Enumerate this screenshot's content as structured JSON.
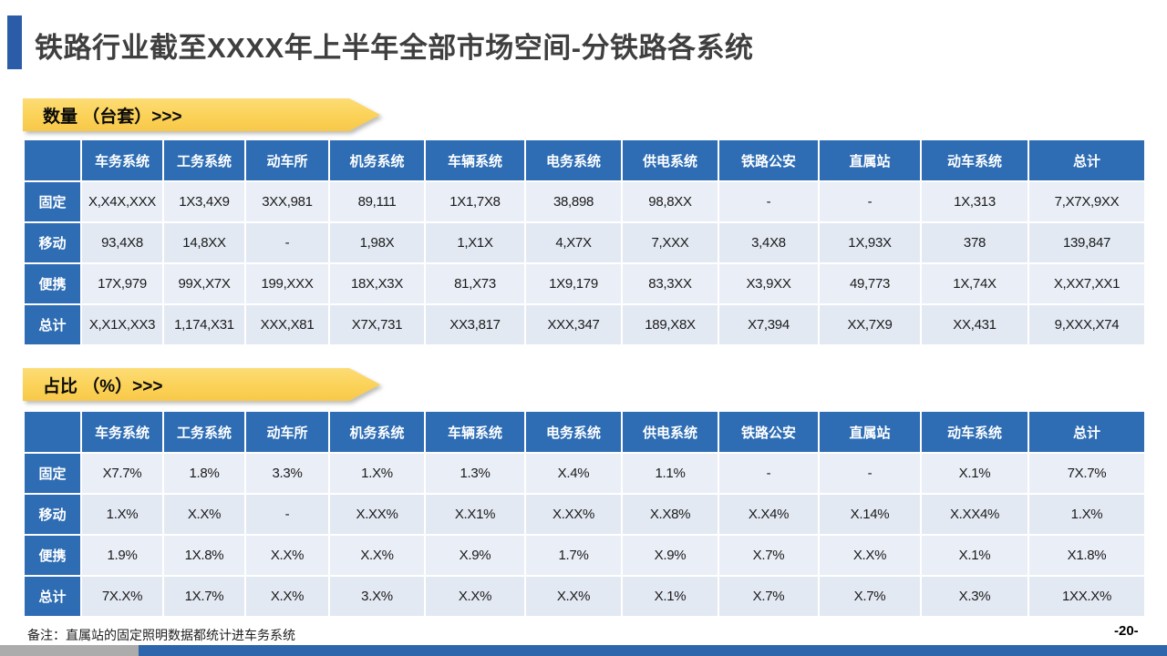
{
  "slide": {
    "title": "铁路行业截至XXXX年上半年全部市场空间-分铁路各系统",
    "note": "备注：直属站的固定照明数据都统计进车务系统",
    "page_number": "-20-"
  },
  "columns": [
    "",
    "车务系统",
    "工务系统",
    "动车所",
    "机务系统",
    "车辆系统",
    "电务系统",
    "供电系统",
    "铁路公安",
    "直属站",
    "动车系统",
    "总计"
  ],
  "sections": [
    {
      "banner": "数量 （台套）>>>",
      "rows": [
        {
          "label": "固定",
          "values": [
            "X,X4X,XXX",
            "1X3,4X9",
            "3XX,981",
            "89,111",
            "1X1,7X8",
            "38,898",
            "98,8XX",
            "-",
            "-",
            "1X,313",
            "7,X7X,9XX"
          ]
        },
        {
          "label": "移动",
          "values": [
            "93,4X8",
            "14,8XX",
            "-",
            "1,98X",
            "1,X1X",
            "4,X7X",
            "7,XXX",
            "3,4X8",
            "1X,93X",
            "378",
            "139,847"
          ]
        },
        {
          "label": "便携",
          "values": [
            "17X,979",
            "99X,X7X",
            "199,XXX",
            "18X,X3X",
            "81,X73",
            "1X9,179",
            "83,3XX",
            "X3,9XX",
            "49,773",
            "1X,74X",
            "X,XX7,XX1"
          ]
        },
        {
          "label": "总计",
          "values": [
            "X,X1X,XX3",
            "1,174,X31",
            "XXX,X81",
            "X7X,731",
            "XX3,817",
            "XXX,347",
            "189,X8X",
            "X7,394",
            "XX,7X9",
            "XX,431",
            "9,XXX,X74"
          ]
        }
      ]
    },
    {
      "banner": "占比 （%）>>>",
      "rows": [
        {
          "label": "固定",
          "values": [
            "X7.7%",
            "1.8%",
            "3.3%",
            "1.X%",
            "1.3%",
            "X.4%",
            "1.1%",
            "-",
            "-",
            "X.1%",
            "7X.7%"
          ]
        },
        {
          "label": "移动",
          "values": [
            "1.X%",
            "X.X%",
            "-",
            "X.XX%",
            "X.X1%",
            "X.XX%",
            "X.X8%",
            "X.X4%",
            "X.14%",
            "X.XX4%",
            "1.X%"
          ]
        },
        {
          "label": "便携",
          "values": [
            "1.9%",
            "1X.8%",
            "X.X%",
            "X.X%",
            "X.9%",
            "1.7%",
            "X.9%",
            "X.7%",
            "X.X%",
            "X.1%",
            "X1.8%"
          ]
        },
        {
          "label": "总计",
          "values": [
            "7X.X%",
            "1X.7%",
            "X.X%",
            "3.X%",
            "X.X%",
            "X.X%",
            "X.1%",
            "X.7%",
            "X.7%",
            "X.3%",
            "1XX.X%"
          ]
        }
      ]
    }
  ],
  "colors": {
    "title_text": "#3F3F3F",
    "accent_bar_blue": "#2B5CA8",
    "table_header_blue": "#2E6DB4",
    "banner_yellow": "#FBD155",
    "row_band_light": "#EAEEF7",
    "row_band_dark": "#E3E9F3",
    "bottom_bar_gray": "#ACACAC",
    "bottom_bar_blue": "#2D66AB"
  }
}
